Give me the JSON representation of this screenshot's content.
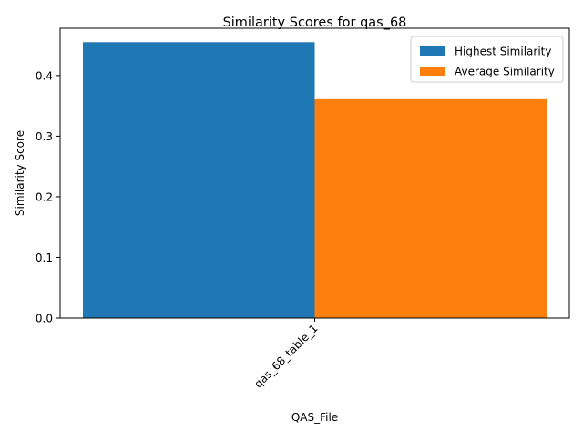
{
  "chart_data": {
    "type": "bar",
    "title": "Similarity Scores for qas_68",
    "xlabel": "QAS_File",
    "ylabel": "Similarity Score",
    "categories": [
      "qas_68_table_1"
    ],
    "series": [
      {
        "name": "Highest Similarity",
        "values": [
          0.455
        ],
        "color": "#1f77b4"
      },
      {
        "name": "Average Similarity",
        "values": [
          0.361
        ],
        "color": "#ff7f0e"
      }
    ],
    "ylim": [
      0,
      0.478
    ],
    "yticks": [
      0.0,
      0.1,
      0.2,
      0.3,
      0.4
    ],
    "ytick_labels": [
      "0.0",
      "0.1",
      "0.2",
      "0.3",
      "0.4"
    ],
    "legend_position": "top-right",
    "grid": false
  }
}
